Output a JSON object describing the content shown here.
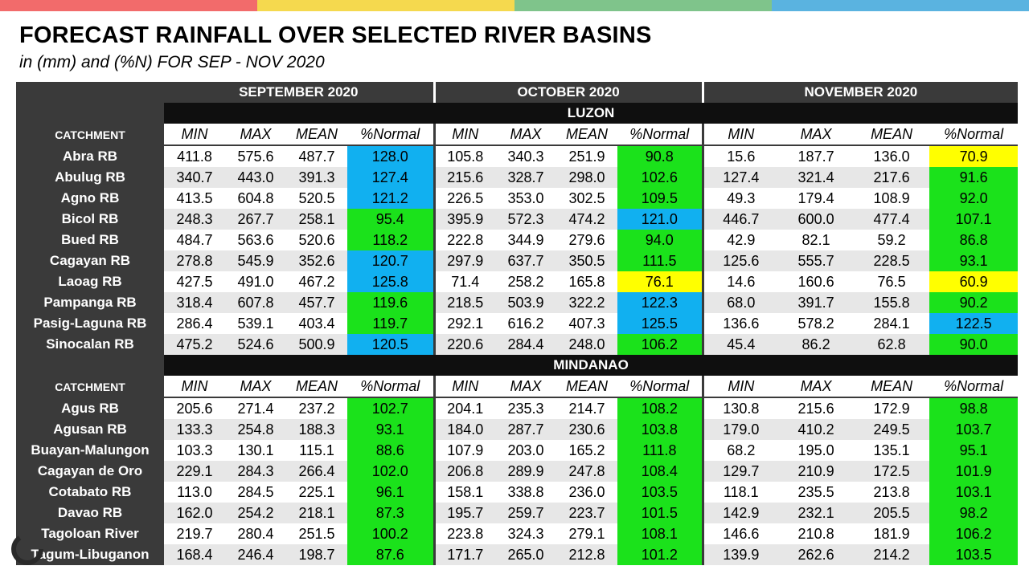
{
  "title": "FORECAST RAINFALL OVER SELECTED RIVER BASINS",
  "subtitle": "in (mm) and (%N) FOR  SEP - NOV 2020",
  "colors": {
    "bar": [
      "#f26b6b",
      "#f5d94e",
      "#7fc48b",
      "#5ab3e0"
    ],
    "header": "#3a3a3a",
    "blue": "#11b0f0",
    "green": "#1be21b",
    "yellow": "#ffff00"
  },
  "months": [
    "SEPTEMBER 2020",
    "OCTOBER 2020",
    "NOVEMBER 2020"
  ],
  "columns": [
    "MIN",
    "MAX",
    "MEAN",
    "%Normal"
  ],
  "catchment_label": "CATCHMENT",
  "regions": [
    {
      "name": "LUZON",
      "rows": [
        {
          "name": "Abra RB",
          "v": [
            "411.8",
            "575.6",
            "487.7",
            "128.0",
            "105.8",
            "340.3",
            "251.9",
            "90.8",
            "15.6",
            "187.7",
            "136.0",
            "70.9"
          ],
          "c": [
            "blue",
            "green",
            "yellow"
          ]
        },
        {
          "name": "Abulug RB",
          "v": [
            "340.7",
            "443.0",
            "391.3",
            "127.4",
            "215.6",
            "328.7",
            "298.0",
            "102.6",
            "127.4",
            "321.4",
            "217.6",
            "91.6"
          ],
          "c": [
            "blue",
            "green",
            "green"
          ]
        },
        {
          "name": "Agno RB",
          "v": [
            "413.5",
            "604.8",
            "520.5",
            "121.2",
            "226.5",
            "353.0",
            "302.5",
            "109.5",
            "49.3",
            "179.4",
            "108.9",
            "92.0"
          ],
          "c": [
            "blue",
            "green",
            "green"
          ]
        },
        {
          "name": "Bicol RB",
          "v": [
            "248.3",
            "267.7",
            "258.1",
            "95.4",
            "395.9",
            "572.3",
            "474.2",
            "121.0",
            "446.7",
            "600.0",
            "477.4",
            "107.1"
          ],
          "c": [
            "green",
            "blue",
            "green"
          ]
        },
        {
          "name": "Bued RB",
          "v": [
            "484.7",
            "563.6",
            "520.6",
            "118.2",
            "222.8",
            "344.9",
            "279.6",
            "94.0",
            "42.9",
            "82.1",
            "59.2",
            "86.8"
          ],
          "c": [
            "green",
            "green",
            "green"
          ]
        },
        {
          "name": "Cagayan RB",
          "v": [
            "278.8",
            "545.9",
            "352.6",
            "120.7",
            "297.9",
            "637.7",
            "350.5",
            "111.5",
            "125.6",
            "555.7",
            "228.5",
            "93.1"
          ],
          "c": [
            "blue",
            "green",
            "green"
          ]
        },
        {
          "name": "Laoag RB",
          "v": [
            "427.5",
            "491.0",
            "467.2",
            "125.8",
            "71.4",
            "258.2",
            "165.8",
            "76.1",
            "14.6",
            "160.6",
            "76.5",
            "60.9"
          ],
          "c": [
            "blue",
            "yellow",
            "yellow"
          ]
        },
        {
          "name": "Pampanga RB",
          "v": [
            "318.4",
            "607.8",
            "457.7",
            "119.6",
            "218.5",
            "503.9",
            "322.2",
            "122.3",
            "68.0",
            "391.7",
            "155.8",
            "90.2"
          ],
          "c": [
            "green",
            "blue",
            "green"
          ]
        },
        {
          "name": "Pasig-Laguna RB",
          "v": [
            "286.4",
            "539.1",
            "403.4",
            "119.7",
            "292.1",
            "616.2",
            "407.3",
            "125.5",
            "136.6",
            "578.2",
            "284.1",
            "122.5"
          ],
          "c": [
            "green",
            "blue",
            "blue"
          ]
        },
        {
          "name": "Sinocalan RB",
          "v": [
            "475.2",
            "524.6",
            "500.9",
            "120.5",
            "220.6",
            "284.4",
            "248.0",
            "106.2",
            "45.4",
            "86.2",
            "62.8",
            "90.0"
          ],
          "c": [
            "blue",
            "green",
            "green"
          ]
        }
      ]
    },
    {
      "name": "MINDANAO",
      "rows": [
        {
          "name": "Agus RB",
          "v": [
            "205.6",
            "271.4",
            "237.2",
            "102.7",
            "204.1",
            "235.3",
            "214.7",
            "108.2",
            "130.8",
            "215.6",
            "172.9",
            "98.8"
          ],
          "c": [
            "green",
            "green",
            "green"
          ]
        },
        {
          "name": "Agusan RB",
          "v": [
            "133.3",
            "254.8",
            "188.3",
            "93.1",
            "184.0",
            "287.7",
            "230.6",
            "103.8",
            "179.0",
            "410.2",
            "249.5",
            "103.7"
          ],
          "c": [
            "green",
            "green",
            "green"
          ]
        },
        {
          "name": "Buayan-Malungon",
          "v": [
            "103.3",
            "130.1",
            "115.1",
            "88.6",
            "107.9",
            "203.0",
            "165.2",
            "111.8",
            "68.2",
            "195.0",
            "135.1",
            "95.1"
          ],
          "c": [
            "green",
            "green",
            "green"
          ]
        },
        {
          "name": "Cagayan de Oro",
          "v": [
            "229.1",
            "284.3",
            "266.4",
            "102.0",
            "206.8",
            "289.9",
            "247.8",
            "108.4",
            "129.7",
            "210.9",
            "172.5",
            "101.9"
          ],
          "c": [
            "green",
            "green",
            "green"
          ]
        },
        {
          "name": "Cotabato RB",
          "v": [
            "113.0",
            "284.5",
            "225.1",
            "96.1",
            "158.1",
            "338.8",
            "236.0",
            "103.5",
            "118.1",
            "235.5",
            "213.8",
            "103.1"
          ],
          "c": [
            "green",
            "green",
            "green"
          ]
        },
        {
          "name": "Davao RB",
          "v": [
            "162.0",
            "254.2",
            "218.1",
            "87.3",
            "195.7",
            "259.7",
            "223.7",
            "101.5",
            "142.9",
            "232.1",
            "205.5",
            "98.2"
          ],
          "c": [
            "green",
            "green",
            "green"
          ]
        },
        {
          "name": "Tagoloan River",
          "v": [
            "219.7",
            "280.4",
            "251.5",
            "100.2",
            "223.8",
            "324.3",
            "279.1",
            "108.1",
            "146.6",
            "210.8",
            "181.9",
            "106.2"
          ],
          "c": [
            "green",
            "green",
            "green"
          ]
        },
        {
          "name": "Tagum-Libuganon",
          "v": [
            "168.4",
            "246.4",
            "198.7",
            "87.6",
            "171.7",
            "265.0",
            "212.8",
            "101.2",
            "139.9",
            "262.6",
            "214.2",
            "103.5"
          ],
          "c": [
            "green",
            "green",
            "green"
          ]
        }
      ]
    }
  ]
}
